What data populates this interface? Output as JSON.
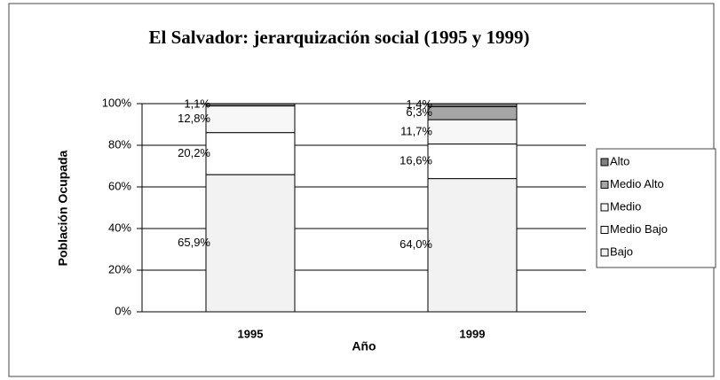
{
  "chart_data": {
    "type": "stacked_bar",
    "title": "El Salvador: jerarquización social (1995 y 1999)",
    "x_label": "Año",
    "y_label": "Población Ocupada",
    "categories": [
      "1995",
      "1999"
    ],
    "series": [
      {
        "name": "Bajo",
        "color": "#f2f2f2",
        "values": [
          65.9,
          64.0
        ],
        "value_labels": [
          "65,9%",
          "64,0%"
        ]
      },
      {
        "name": "Medio Bajo",
        "color": "#ffffff",
        "values": [
          20.2,
          16.6
        ],
        "value_labels": [
          "20,2%",
          "16,6%"
        ]
      },
      {
        "name": "Medio",
        "color": "#f7f7f7",
        "values": [
          12.8,
          11.7
        ],
        "value_labels": [
          "12,8%",
          "11,7%"
        ]
      },
      {
        "name": "Medio Alto",
        "color": "#a6a6a6",
        "values": [
          0,
          6.3
        ],
        "value_labels": [
          null,
          "6,3%"
        ]
      },
      {
        "name": "Alto",
        "color": "#808080",
        "values": [
          1.1,
          1.4
        ],
        "value_labels": [
          "1,1%",
          "1,4%"
        ]
      }
    ],
    "ylim": [
      0,
      100
    ],
    "yticks": [
      {
        "value": 0,
        "label": "0%"
      },
      {
        "value": 20,
        "label": "20%"
      },
      {
        "value": 40,
        "label": "40%"
      },
      {
        "value": 60,
        "label": "60%"
      },
      {
        "value": 80,
        "label": "80%"
      },
      {
        "value": 100,
        "label": "100%"
      }
    ],
    "grid": true
  }
}
